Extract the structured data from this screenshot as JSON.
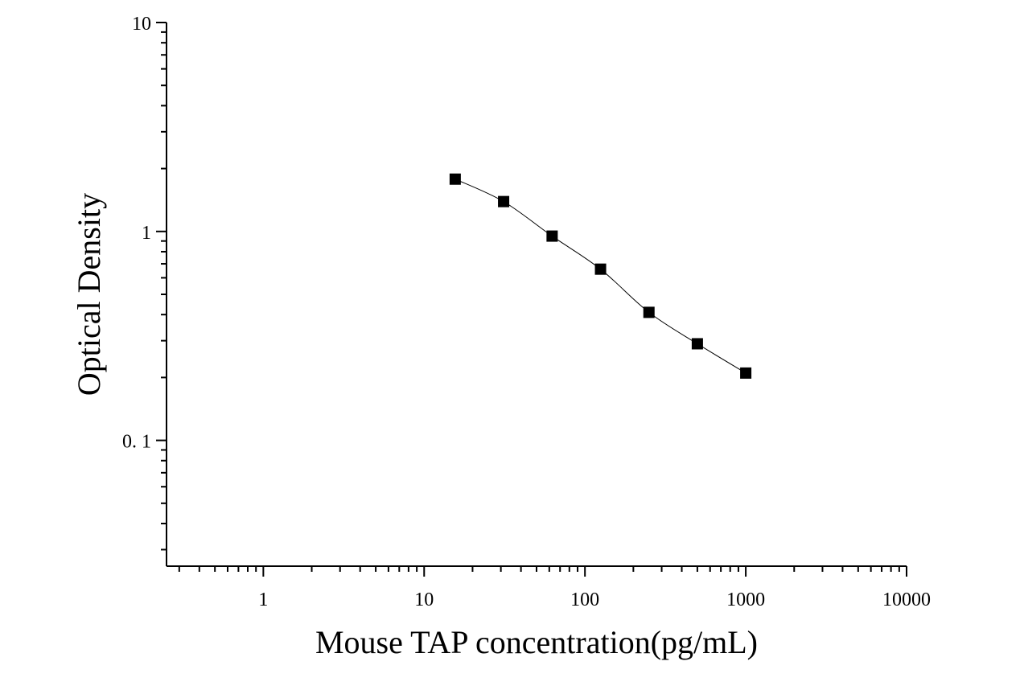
{
  "chart_data": {
    "type": "scatter",
    "title": "",
    "xlabel": "Mouse TAP concentration(pg/mL)",
    "ylabel": "Optical Density",
    "x_scale": "log",
    "y_scale": "log",
    "xlim": [
      0.25,
      10000
    ],
    "ylim": [
      0.025,
      10
    ],
    "x_tick_labels": [
      "1",
      "10",
      "100",
      "1000",
      "10000"
    ],
    "y_tick_labels": [
      "0. 1",
      "1",
      "10"
    ],
    "x_major_ticks": [
      1,
      10,
      100,
      1000,
      10000
    ],
    "y_major_ticks": [
      0.1,
      1,
      10
    ],
    "grid": false,
    "series": [
      {
        "x": [
          15.6,
          31.2,
          62.5,
          125,
          250,
          500,
          1000
        ],
        "y": [
          1.78,
          1.39,
          0.95,
          0.66,
          0.41,
          0.29,
          0.21
        ],
        "marker": "square",
        "fit_line": true
      }
    ]
  }
}
